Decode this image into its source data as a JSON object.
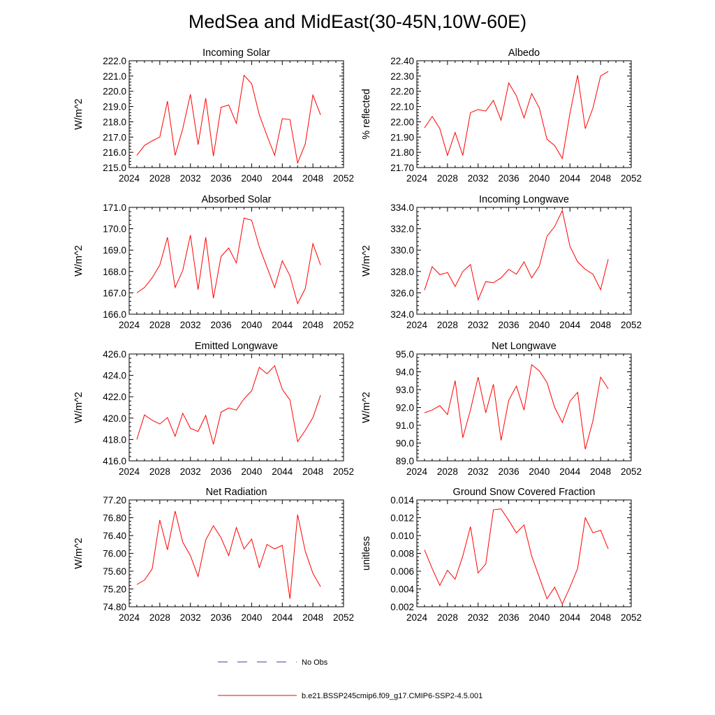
{
  "figure": {
    "title": "MedSea and MidEast(30-45N,10W-60E)"
  },
  "legend": {
    "items": [
      {
        "label": "No Obs",
        "color": "#3b3bb0",
        "dash": true
      },
      {
        "label": "b.e21.BSSP245cmip6.f09_g17.CMIP6-SSP2-4.5.001",
        "color": "#ff0000",
        "dash": false
      }
    ]
  },
  "chart_data": [
    {
      "type": "line",
      "title": "Incoming Solar",
      "ylabel": "W/m^2",
      "xlim": [
        2024,
        2052
      ],
      "xticks": [
        "2024",
        "2028",
        "2032",
        "2036",
        "2040",
        "2044",
        "2048",
        "2052"
      ],
      "ylim": [
        215.0,
        222.0
      ],
      "yticks": [
        "215.0",
        "216.0",
        "217.0",
        "218.0",
        "219.0",
        "220.0",
        "221.0",
        "222.0"
      ],
      "x": [
        2025,
        2026,
        2027,
        2028,
        2029,
        2030,
        2031,
        2032,
        2033,
        2034,
        2035,
        2036,
        2037,
        2038,
        2039,
        2040,
        2041,
        2042,
        2043,
        2044,
        2045,
        2046,
        2047,
        2048,
        2049
      ],
      "series": [
        {
          "color": "#ff0000",
          "values": [
            215.8,
            216.45,
            216.75,
            217.0,
            219.35,
            215.8,
            217.55,
            219.8,
            216.5,
            219.55,
            215.75,
            218.95,
            219.1,
            217.9,
            221.05,
            220.5,
            218.45,
            217.1,
            215.8,
            218.2,
            218.15,
            215.3,
            216.55,
            219.75,
            218.45
          ]
        }
      ]
    },
    {
      "type": "line",
      "title": "Albedo",
      "ylabel": "% reflected",
      "xlim": [
        2024,
        2052
      ],
      "xticks": [
        "2024",
        "2028",
        "2032",
        "2036",
        "2040",
        "2044",
        "2048",
        "2052"
      ],
      "ylim": [
        21.7,
        22.4
      ],
      "yticks": [
        "21.70",
        "21.80",
        "21.90",
        "22.00",
        "22.10",
        "22.20",
        "22.30",
        "22.40"
      ],
      "x": [
        2025,
        2026,
        2027,
        2028,
        2029,
        2030,
        2031,
        2032,
        2033,
        2034,
        2035,
        2036,
        2037,
        2038,
        2039,
        2040,
        2041,
        2042,
        2043,
        2044,
        2045,
        2046,
        2047,
        2048,
        2049
      ],
      "series": [
        {
          "color": "#ff0000",
          "values": [
            21.96,
            22.035,
            21.955,
            21.78,
            21.93,
            21.78,
            22.06,
            22.08,
            22.07,
            22.14,
            22.01,
            22.255,
            22.17,
            22.025,
            22.185,
            22.09,
            21.885,
            21.845,
            21.76,
            22.055,
            22.305,
            21.955,
            22.09,
            22.3,
            22.33
          ]
        }
      ]
    },
    {
      "type": "line",
      "title": "Absorbed Solar",
      "ylabel": "W/m^2",
      "xlim": [
        2024,
        2052
      ],
      "xticks": [
        "2024",
        "2028",
        "2032",
        "2036",
        "2040",
        "2044",
        "2048",
        "2052"
      ],
      "ylim": [
        166.0,
        171.0
      ],
      "yticks": [
        "166.0",
        "167.0",
        "168.0",
        "169.0",
        "170.0",
        "171.0"
      ],
      "x": [
        2025,
        2026,
        2027,
        2028,
        2029,
        2030,
        2031,
        2032,
        2033,
        2034,
        2035,
        2036,
        2037,
        2038,
        2039,
        2040,
        2041,
        2042,
        2043,
        2044,
        2045,
        2046,
        2047,
        2048,
        2049
      ],
      "series": [
        {
          "color": "#ff0000",
          "values": [
            167.0,
            167.25,
            167.7,
            168.3,
            169.6,
            167.25,
            168.05,
            169.7,
            167.15,
            169.6,
            166.75,
            168.7,
            169.1,
            168.4,
            170.5,
            170.4,
            169.15,
            168.2,
            167.25,
            168.5,
            167.8,
            166.5,
            167.2,
            169.3,
            168.3
          ]
        }
      ]
    },
    {
      "type": "line",
      "title": "Incoming Longwave",
      "ylabel": "W/m^2",
      "xlim": [
        2024,
        2052
      ],
      "xticks": [
        "2024",
        "2028",
        "2032",
        "2036",
        "2040",
        "2044",
        "2048",
        "2052"
      ],
      "ylim": [
        324.0,
        334.0
      ],
      "yticks": [
        "324.0",
        "326.0",
        "328.0",
        "330.0",
        "332.0",
        "334.0"
      ],
      "x": [
        2025,
        2026,
        2027,
        2028,
        2029,
        2030,
        2031,
        2032,
        2033,
        2034,
        2035,
        2036,
        2037,
        2038,
        2039,
        2040,
        2041,
        2042,
        2043,
        2044,
        2045,
        2046,
        2047,
        2048,
        2049
      ],
      "series": [
        {
          "color": "#ff0000",
          "values": [
            326.25,
            328.45,
            327.7,
            327.9,
            326.6,
            328.0,
            328.65,
            325.35,
            327.05,
            326.95,
            327.4,
            328.2,
            327.75,
            328.9,
            327.4,
            328.5,
            331.3,
            332.2,
            333.7,
            330.35,
            328.9,
            328.2,
            327.75,
            326.3,
            329.15
          ]
        }
      ]
    },
    {
      "type": "line",
      "title": "Emitted Longwave",
      "ylabel": "W/m^2",
      "xlim": [
        2024,
        2052
      ],
      "xticks": [
        "2024",
        "2028",
        "2032",
        "2036",
        "2040",
        "2044",
        "2048",
        "2052"
      ],
      "ylim": [
        416.0,
        426.0
      ],
      "yticks": [
        "416.0",
        "418.0",
        "420.0",
        "422.0",
        "424.0",
        "426.0"
      ],
      "x": [
        2025,
        2026,
        2027,
        2028,
        2029,
        2030,
        2031,
        2032,
        2033,
        2034,
        2035,
        2036,
        2037,
        2038,
        2039,
        2040,
        2041,
        2042,
        2043,
        2044,
        2045,
        2046,
        2047,
        2048,
        2049
      ],
      "series": [
        {
          "color": "#ff0000",
          "values": [
            418.0,
            420.3,
            419.8,
            419.45,
            420.05,
            418.3,
            420.45,
            419.05,
            418.75,
            420.25,
            417.55,
            420.55,
            420.95,
            420.75,
            421.8,
            422.55,
            424.75,
            424.15,
            424.9,
            422.7,
            421.7,
            417.8,
            418.85,
            420.05,
            422.15
          ]
        }
      ]
    },
    {
      "type": "line",
      "title": "Net Longwave",
      "ylabel": "W/m^2",
      "xlim": [
        2024,
        2052
      ],
      "xticks": [
        "2024",
        "2028",
        "2032",
        "2036",
        "2040",
        "2044",
        "2048",
        "2052"
      ],
      "ylim": [
        89.0,
        95.0
      ],
      "yticks": [
        "89.0",
        "90.0",
        "91.0",
        "92.0",
        "93.0",
        "94.0",
        "95.0"
      ],
      "x": [
        2025,
        2026,
        2027,
        2028,
        2029,
        2030,
        2031,
        2032,
        2033,
        2034,
        2035,
        2036,
        2037,
        2038,
        2039,
        2040,
        2041,
        2042,
        2043,
        2044,
        2045,
        2046,
        2047,
        2048,
        2049
      ],
      "series": [
        {
          "color": "#ff0000",
          "values": [
            91.7,
            91.85,
            92.1,
            91.6,
            93.5,
            90.3,
            91.85,
            93.7,
            91.7,
            93.3,
            90.15,
            92.4,
            93.2,
            91.85,
            94.4,
            94.05,
            93.4,
            92.0,
            91.15,
            92.35,
            92.85,
            89.65,
            91.25,
            93.7,
            93.05
          ]
        }
      ]
    },
    {
      "type": "line",
      "title": "Net Radiation",
      "ylabel": "W/m^2",
      "xlim": [
        2024,
        2052
      ],
      "xticks": [
        "2024",
        "2028",
        "2032",
        "2036",
        "2040",
        "2044",
        "2048",
        "2052"
      ],
      "ylim": [
        74.8,
        77.2
      ],
      "yticks": [
        "74.80",
        "75.20",
        "75.60",
        "76.00",
        "76.40",
        "76.80",
        "77.20"
      ],
      "x": [
        2025,
        2026,
        2027,
        2028,
        2029,
        2030,
        2031,
        2032,
        2033,
        2034,
        2035,
        2036,
        2037,
        2038,
        2039,
        2040,
        2041,
        2042,
        2043,
        2044,
        2045,
        2046,
        2047,
        2048,
        2049
      ],
      "series": [
        {
          "color": "#ff0000",
          "values": [
            75.3,
            75.4,
            75.65,
            76.75,
            76.08,
            76.95,
            76.25,
            75.95,
            75.48,
            76.3,
            76.62,
            76.35,
            75.95,
            76.58,
            76.1,
            76.32,
            75.68,
            76.2,
            76.1,
            76.18,
            74.98,
            76.87,
            76.05,
            75.55,
            75.25
          ]
        }
      ]
    },
    {
      "type": "line",
      "title": "Ground Snow Covered Fraction",
      "ylabel": "unitless",
      "xlim": [
        2024,
        2052
      ],
      "xticks": [
        "2024",
        "2028",
        "2032",
        "2036",
        "2040",
        "2044",
        "2048",
        "2052"
      ],
      "ylim": [
        0.002,
        0.014
      ],
      "yticks": [
        "0.002",
        "0.004",
        "0.006",
        "0.008",
        "0.010",
        "0.012",
        "0.014"
      ],
      "x": [
        2025,
        2026,
        2027,
        2028,
        2029,
        2030,
        2031,
        2032,
        2033,
        2034,
        2035,
        2036,
        2037,
        2038,
        2039,
        2040,
        2041,
        2042,
        2043,
        2044,
        2045,
        2046,
        2047,
        2048,
        2049
      ],
      "series": [
        {
          "color": "#ff0000",
          "values": [
            0.0084,
            0.0063,
            0.0044,
            0.0061,
            0.0051,
            0.0077,
            0.011,
            0.0058,
            0.0068,
            0.0129,
            0.013,
            0.0117,
            0.0103,
            0.0112,
            0.0077,
            0.0053,
            0.0029,
            0.0042,
            0.0023,
            0.0042,
            0.0063,
            0.012,
            0.0103,
            0.0106,
            0.0085
          ]
        }
      ]
    }
  ]
}
